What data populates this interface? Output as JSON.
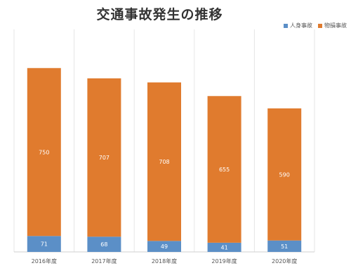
{
  "chart_data": {
    "type": "bar",
    "stacked": true,
    "title": "交通事故発生の推移",
    "categories": [
      "2016年度",
      "2017年度",
      "2018年度",
      "2019年度",
      "2020年度"
    ],
    "series": [
      {
        "name": "人身事故",
        "color": "#5b8fc7",
        "values": [
          71,
          68,
          49,
          41,
          51
        ]
      },
      {
        "name": "物損事故",
        "color": "#e07b2e",
        "values": [
          750,
          707,
          708,
          655,
          590
        ]
      }
    ],
    "ylim": [
      0,
      900
    ],
    "grid": "vertical",
    "legend_position": "top-right",
    "xlabel": "",
    "ylabel": ""
  }
}
